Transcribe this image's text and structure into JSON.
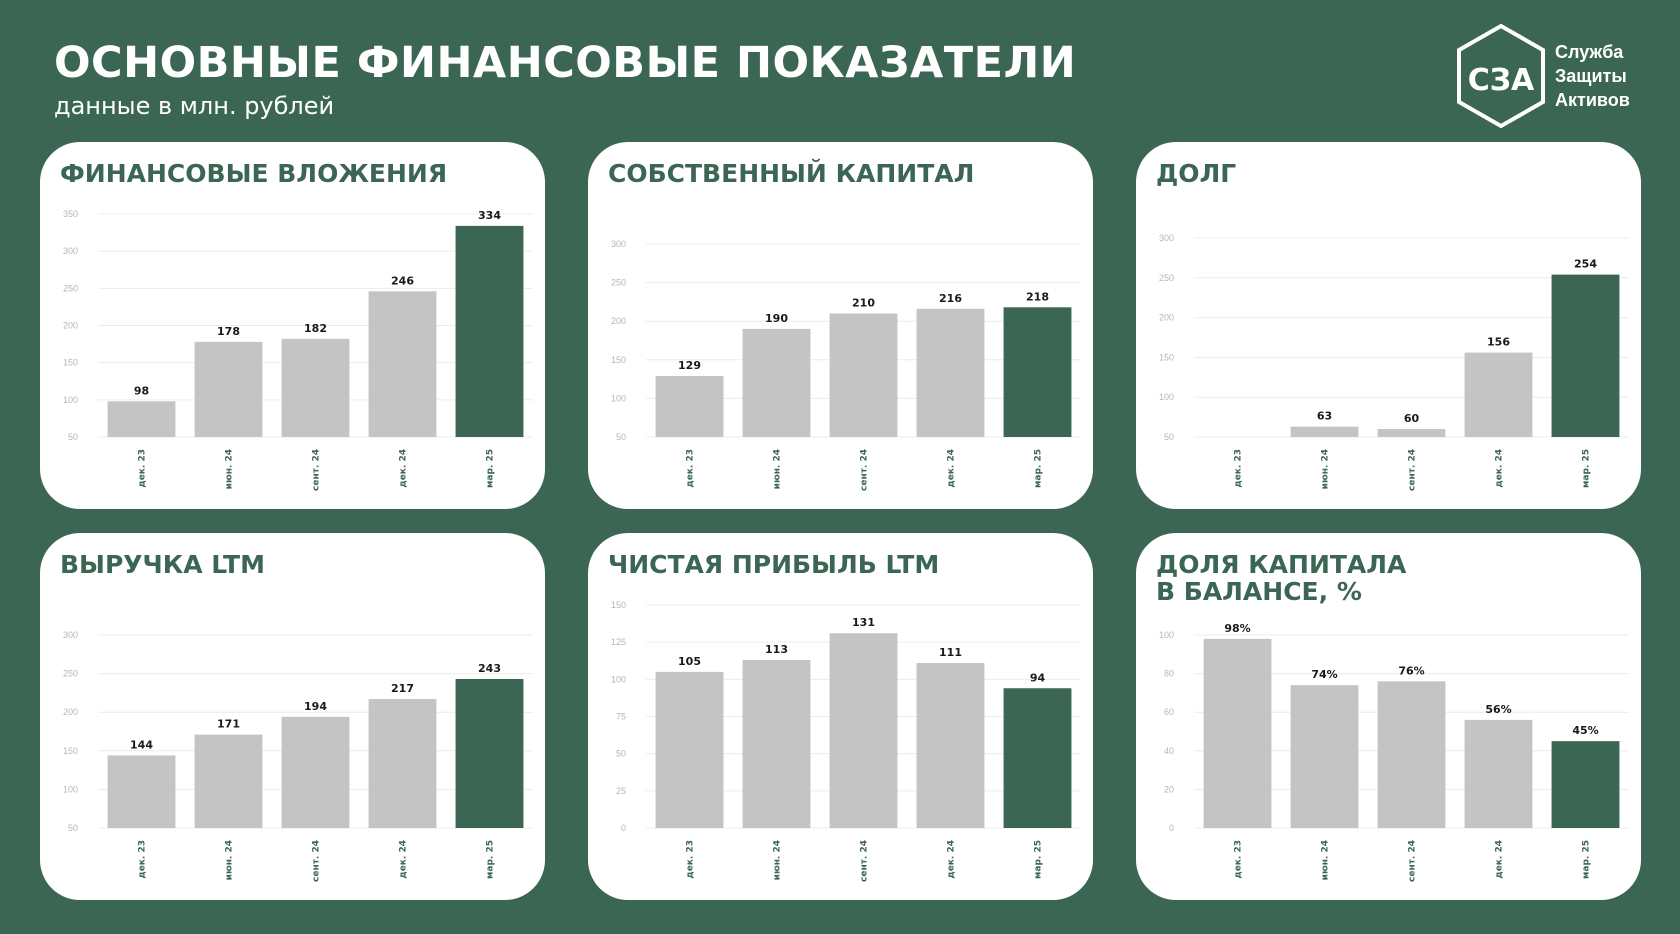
{
  "header": {
    "title": "ОСНОВНЫЕ ФИНАНСОВЫЕ ПОКАЗАТЕЛИ",
    "subtitle": "данные в млн. рублей"
  },
  "logo": {
    "mark_text": "СЗА",
    "line1": "Служба",
    "line2": "Защиты",
    "line3": "Активов"
  },
  "colors": {
    "background": "#3c6654",
    "accent": "#3c6654",
    "bar": "#c4c4c4",
    "card": "#ffffff"
  },
  "chart_data": [
    {
      "type": "bar",
      "title": "ФИНАНСОВЫЕ ВЛОЖЕНИЯ",
      "categories": [
        "дек. 23",
        "июн. 24",
        "сент. 24",
        "дек. 24",
        "мар. 25"
      ],
      "values": [
        98,
        178,
        182,
        246,
        334
      ],
      "labels": [
        "98",
        "178",
        "182",
        "246",
        "334"
      ],
      "ylim": [
        50,
        350
      ],
      "yticks": [
        50,
        100,
        150,
        200,
        250,
        300,
        350
      ],
      "highlight_index": 4,
      "grid": true
    },
    {
      "type": "bar",
      "title": "СОБСТВЕННЫЙ КАПИТАЛ",
      "categories": [
        "дек. 23",
        "июн. 24",
        "сент. 24",
        "дек. 24",
        "мар. 25"
      ],
      "values": [
        129,
        190,
        210,
        216,
        218
      ],
      "labels": [
        "129",
        "190",
        "210",
        "216",
        "218"
      ],
      "ylim": [
        50,
        300
      ],
      "yticks": [
        50,
        100,
        150,
        200,
        250,
        300
      ],
      "highlight_index": 4,
      "grid": true
    },
    {
      "type": "bar",
      "title": "ДОЛГ",
      "categories": [
        "дек. 23",
        "июн. 24",
        "сент. 24",
        "дек. 24",
        "мар. 25"
      ],
      "values": [
        null,
        63,
        60,
        156,
        254
      ],
      "labels": [
        "",
        "63",
        "60",
        "156",
        "254"
      ],
      "ylim": [
        50,
        300
      ],
      "yticks": [
        50,
        100,
        150,
        200,
        250,
        300
      ],
      "highlight_index": 4,
      "grid": true
    },
    {
      "type": "bar",
      "title": "ВЫРУЧКА LTM",
      "categories": [
        "дек. 23",
        "июн. 24",
        "сент. 24",
        "дек. 24",
        "мар. 25"
      ],
      "values": [
        144,
        171,
        194,
        217,
        243
      ],
      "labels": [
        "144",
        "171",
        "194",
        "217",
        "243"
      ],
      "ylim": [
        50,
        300
      ],
      "yticks": [
        50,
        100,
        150,
        200,
        250,
        300
      ],
      "highlight_index": 4,
      "grid": true
    },
    {
      "type": "bar",
      "title": "ЧИСТАЯ ПРИБЫЛЬ LTM",
      "categories": [
        "дек. 23",
        "июн. 24",
        "сент. 24",
        "дек. 24",
        "мар. 25"
      ],
      "values": [
        105,
        113,
        131,
        111,
        94
      ],
      "labels": [
        "105",
        "113",
        "131",
        "111",
        "94"
      ],
      "ylim": [
        0,
        150
      ],
      "yticks": [
        0,
        25,
        50,
        75,
        100,
        125,
        150
      ],
      "highlight_index": 4,
      "grid": true
    },
    {
      "type": "bar",
      "title": "ДОЛЯ КАПИТАЛА\nВ БАЛАНСЕ, %",
      "categories": [
        "дек. 23",
        "июн. 24",
        "сент. 24",
        "дек. 24",
        "мар. 25"
      ],
      "values": [
        98,
        74,
        76,
        56,
        45
      ],
      "labels": [
        "98%",
        "74%",
        "76%",
        "56%",
        "45%"
      ],
      "ylim": [
        0,
        100
      ],
      "yticks": [
        0,
        20,
        40,
        60,
        80,
        100
      ],
      "highlight_index": 4,
      "grid": true
    }
  ]
}
